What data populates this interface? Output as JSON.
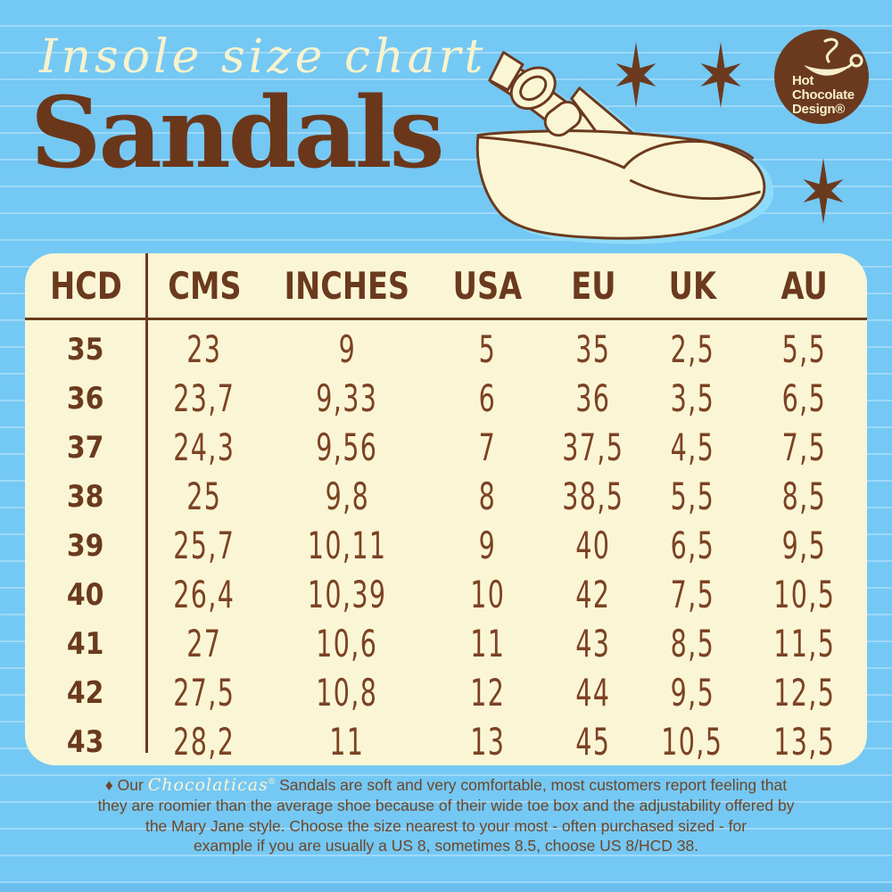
{
  "title": {
    "script": "Insole size chart",
    "main": "Sandals"
  },
  "logo": {
    "line1": "Hot",
    "line2": "Chocolate",
    "line3": "Design®"
  },
  "table": {
    "headers": [
      "HCD",
      "CMS",
      "INCHES",
      "USA",
      "EU",
      "UK",
      "AU"
    ],
    "rows": [
      [
        "35",
        "23",
        "9",
        "5",
        "35",
        "2,5",
        "5,5"
      ],
      [
        "36",
        "23,7",
        "9,33",
        "6",
        "36",
        "3,5",
        "6,5"
      ],
      [
        "37",
        "24,3",
        "9,56",
        "7",
        "37,5",
        "4,5",
        "7,5"
      ],
      [
        "38",
        "25",
        "9,8",
        "8",
        "38,5",
        "5,5",
        "8,5"
      ],
      [
        "39",
        "25,7",
        "10,11",
        "9",
        "40",
        "6,5",
        "9,5"
      ],
      [
        "40",
        "26,4",
        "10,39",
        "10",
        "42",
        "7,5",
        "10,5"
      ],
      [
        "41",
        "27",
        "10,6",
        "11",
        "43",
        "8,5",
        "11,5"
      ],
      [
        "42",
        "27,5",
        "10,8",
        "12",
        "44",
        "9,5",
        "12,5"
      ],
      [
        "43",
        "28,2",
        "11",
        "13",
        "45",
        "10,5",
        "13,5"
      ]
    ]
  },
  "footnote": {
    "line1_pre": "♦ Our ",
    "brand": "Chocolaticas",
    "reg": "®",
    "line1_rest": " Sandals are soft and very comfortable, most customers report feeling that",
    "line2": "they are roomier than the average shoe because of their wide toe box and the adjustability offered by",
    "line3": "the Mary Jane style. Choose the size nearest to your most - often  purchased sized - for",
    "line4": "example if you are usually a US 8, sometimes 8.5, choose US 8/HCD 38."
  },
  "colors": {
    "background_blue": "#74c8f4",
    "stripe_blue": "#8fd6f8",
    "cream": "#faf6d5",
    "brown": "#6b3a1e",
    "number_brown": "#7c4224",
    "shadow_blue": "#8edbf9"
  }
}
